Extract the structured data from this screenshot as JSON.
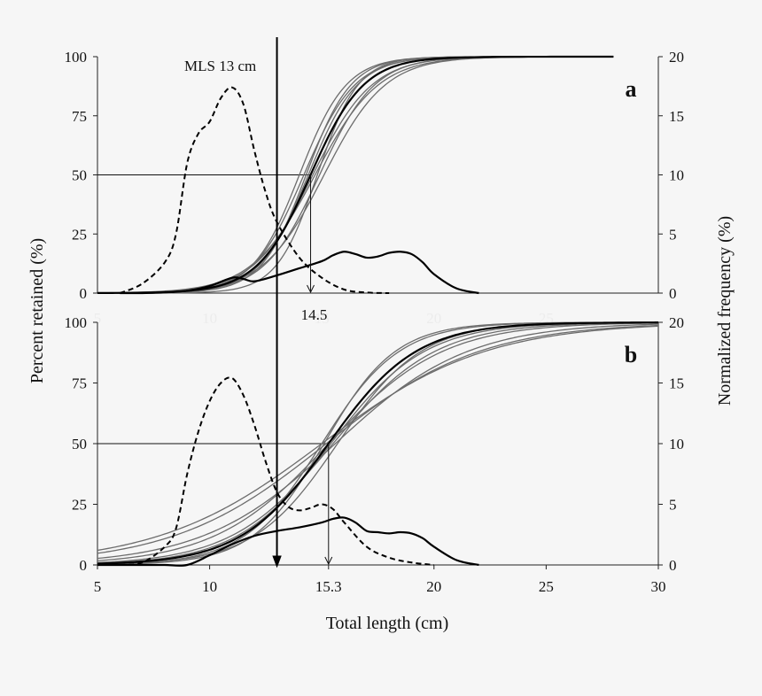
{
  "chart_data": {
    "type": "line",
    "x_axis": {
      "label": "Total length (cm)",
      "range": [
        5,
        30
      ],
      "ticks": [
        5,
        10,
        15.3,
        20,
        25,
        30
      ],
      "tick_labels": [
        "5",
        "10",
        "15.3",
        "20",
        "25",
        "30"
      ]
    },
    "y_left": {
      "label": "Percent retained (%)",
      "range": [
        0,
        100
      ],
      "ticks": [
        0,
        25,
        50,
        75,
        100
      ]
    },
    "y_right": {
      "label": "Normalized frequency (%)",
      "range": [
        0,
        20
      ],
      "ticks": [
        0,
        5,
        10,
        15,
        20
      ]
    },
    "mls": {
      "value": 13,
      "label": "MLS 13 cm"
    },
    "panels": [
      {
        "id": "a",
        "letter": "a",
        "l50": 14.5,
        "l50_label": "14.5",
        "faint_ticks": [
          "5",
          "10",
          "15",
          "20",
          "25"
        ],
        "selectivity_curves": [
          {
            "l50": 14.4,
            "sr": 2.4
          },
          {
            "l50": 14.5,
            "sr": 2.6
          },
          {
            "l50": 14.6,
            "sr": 2.9
          },
          {
            "l50": 14.3,
            "sr": 2.2
          },
          {
            "l50": 14.7,
            "sr": 3.1
          },
          {
            "l50": 14.2,
            "sr": 2.5
          },
          {
            "l50": 14.9,
            "sr": 2.7
          },
          {
            "l50": 15.1,
            "sr": 3.0
          },
          {
            "l50": 14.0,
            "sr": 2.3
          },
          {
            "l50": 14.8,
            "sr": 2.0
          }
        ],
        "mean_curve": {
          "l50": 14.5,
          "sr": 2.6
        },
        "frequency_retained": {
          "x": [
            6,
            7,
            8,
            9,
            10,
            11,
            11.5,
            12,
            13,
            14,
            15,
            15.5,
            16,
            16.5,
            17,
            17.5,
            18,
            18.5,
            19,
            19.5,
            20,
            21,
            22
          ],
          "y": [
            0,
            0,
            0.05,
            0.2,
            0.6,
            1.3,
            1.2,
            1.0,
            1.5,
            2.1,
            2.7,
            3.2,
            3.5,
            3.3,
            3.0,
            3.1,
            3.4,
            3.5,
            3.3,
            2.6,
            1.6,
            0.4,
            0
          ]
        },
        "frequency_population": {
          "x": [
            6,
            7,
            8,
            8.5,
            9,
            9.5,
            10,
            10.5,
            11,
            11.5,
            12,
            12.5,
            13,
            14,
            15,
            16,
            17,
            18
          ],
          "y": [
            0,
            0.8,
            2.6,
            5.0,
            11.0,
            13.5,
            14.5,
            16.5,
            17.4,
            16.0,
            12.0,
            8.5,
            6.0,
            3.0,
            1.3,
            0.3,
            0.05,
            0
          ]
        }
      },
      {
        "id": "b",
        "letter": "b",
        "l50": 15.3,
        "l50_label": "15.3",
        "faint_ticks": [],
        "selectivity_curves": [
          {
            "l50": 15.0,
            "sr": 3.8
          },
          {
            "l50": 15.3,
            "sr": 4.3
          },
          {
            "l50": 15.5,
            "sr": 5.0
          },
          {
            "l50": 15.1,
            "sr": 3.5
          },
          {
            "l50": 15.4,
            "sr": 4.6
          },
          {
            "l50": 15.6,
            "sr": 6.5
          },
          {
            "l50": 15.2,
            "sr": 7.5
          },
          {
            "l50": 15.0,
            "sr": 8.0
          },
          {
            "l50": 15.7,
            "sr": 4.1
          },
          {
            "l50": 15.3,
            "sr": 5.6
          }
        ],
        "mean_curve": {
          "l50": 15.3,
          "sr": 4.3
        },
        "frequency_retained": {
          "x": [
            5,
            6,
            7,
            8,
            9,
            10,
            11,
            12,
            13,
            14,
            15,
            15.5,
            16,
            16.5,
            17,
            17.5,
            18,
            18.5,
            19,
            19.5,
            20,
            21,
            22
          ],
          "y": [
            0,
            0,
            0,
            0,
            0,
            0.8,
            1.7,
            2.4,
            2.8,
            3.1,
            3.5,
            3.8,
            3.9,
            3.5,
            2.8,
            2.7,
            2.6,
            2.7,
            2.6,
            2.2,
            1.5,
            0.4,
            0
          ]
        },
        "frequency_population": {
          "x": [
            6,
            7,
            8,
            8.5,
            9,
            9.5,
            10,
            10.5,
            11,
            11.5,
            12,
            12.5,
            13,
            13.5,
            14,
            14.5,
            15,
            15.5,
            16,
            17,
            18,
            19,
            20
          ],
          "y": [
            0,
            0.2,
            1.5,
            3.0,
            7.5,
            11.0,
            13.5,
            15.0,
            15.4,
            14.0,
            11.5,
            8.5,
            6.0,
            4.8,
            4.5,
            4.7,
            5.0,
            4.6,
            3.5,
            1.5,
            0.6,
            0.2,
            0
          ]
        }
      }
    ]
  }
}
